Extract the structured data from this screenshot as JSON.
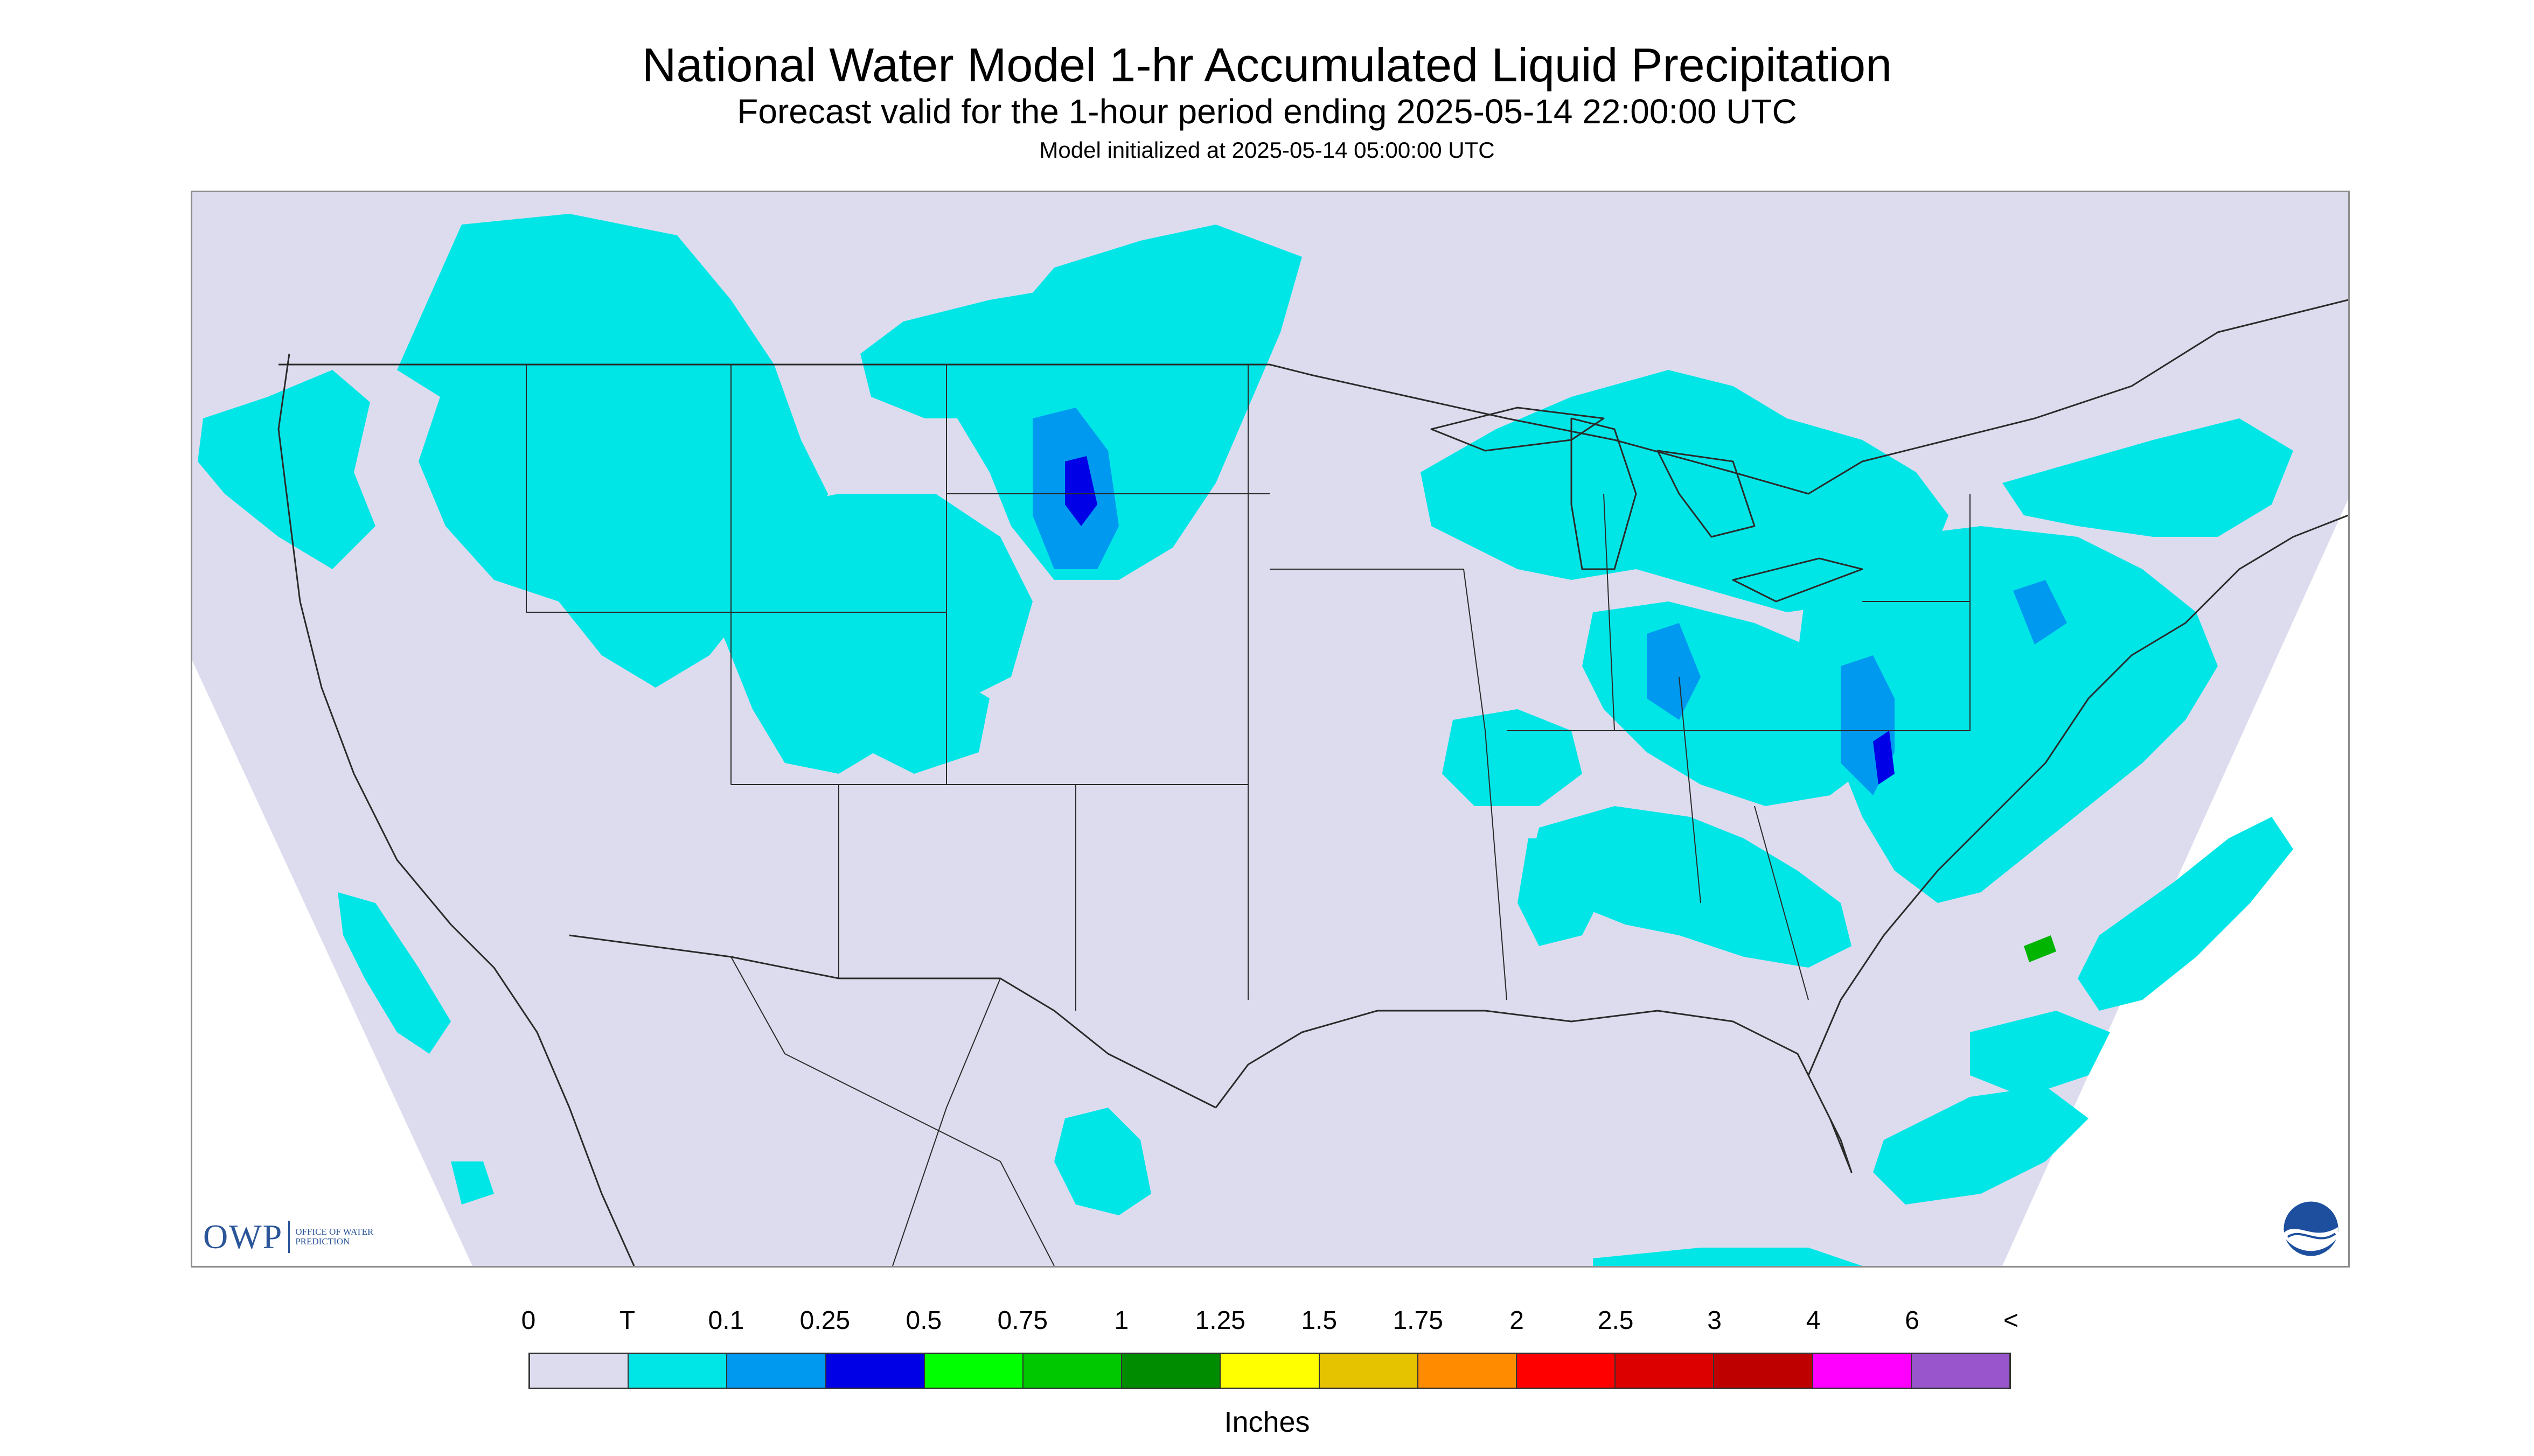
{
  "header": {
    "title": "National Water Model 1-hr Accumulated Liquid Precipitation",
    "subtitle": "Forecast valid for the 1-hour period ending 2025-05-14 22:00:00 UTC",
    "init": "Model initialized at 2025-05-14 05:00:00 UTC"
  },
  "map": {
    "projection_fill": "#dcdcee",
    "border_color": "#2a2a2a",
    "precip_colors": {
      "trace": "#00e6e6",
      "tenth": "#0099f0",
      "quarter": "#0000e6",
      "green": "#00b400"
    },
    "precip_regions": [
      "pacific-northwest",
      "northern-rockies",
      "northern-plains",
      "montana-dakota-band",
      "colorado-utah",
      "great-lakes",
      "ohio-valley",
      "mid-atlantic",
      "northeast",
      "southeast",
      "gulf-atlantic-offshore",
      "california-offshore",
      "southern-mexico"
    ]
  },
  "logos": {
    "owp_mark": "OWP",
    "owp_text": "OFFICE OF WATER PREDICTION",
    "noaa_icon": "noaa-logo-icon"
  },
  "legend": {
    "labels": [
      "0",
      "T",
      "0.1",
      "0.25",
      "0.5",
      "0.75",
      "1",
      "1.25",
      "1.5",
      "1.75",
      "2",
      "2.5",
      "3",
      "4",
      "6",
      "<"
    ],
    "colors": [
      "#dcdcee",
      "#00e6e6",
      "#0099f0",
      "#0000e6",
      "#00ff00",
      "#00c800",
      "#008c00",
      "#ffff00",
      "#e6c300",
      "#ff8c00",
      "#ff0000",
      "#dc0000",
      "#be0000",
      "#ff00ff",
      "#9955cc"
    ],
    "units": "Inches"
  }
}
